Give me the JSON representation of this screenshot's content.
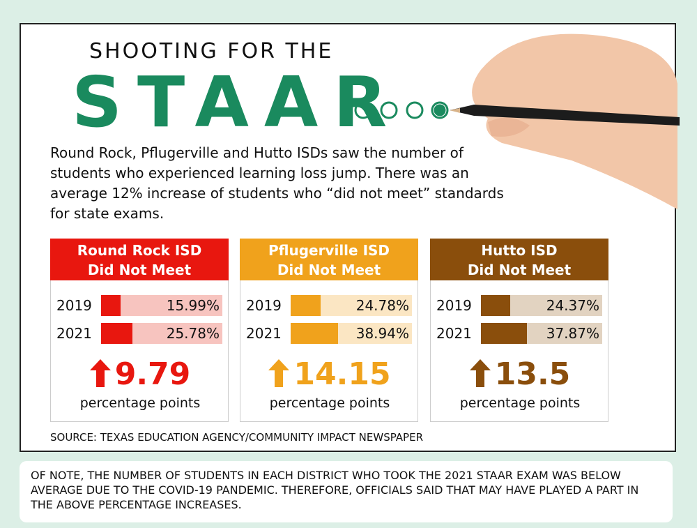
{
  "header": {
    "kicker": "SHOOTING FOR THE",
    "title": "STAAR"
  },
  "description": "Round Rock, Pflugerville and Hutto ISDs saw the number of students who experienced learning loss jump. There was an average 12% increase of students who “did not meet” standards for state exams.",
  "chart_data": [
    {
      "type": "bar",
      "title": "Round Rock ISD",
      "subtitle": "Did Not Meet",
      "categories": [
        "2019",
        "2021"
      ],
      "values": [
        15.99,
        25.78
      ],
      "value_labels": [
        "15.99%",
        "25.78%"
      ],
      "ylim": [
        0,
        100
      ],
      "color": "#e8170f",
      "track_color": "#f7c4bf",
      "change": 9.79,
      "change_unit": "percentage points"
    },
    {
      "type": "bar",
      "title": "Pflugerville ISD",
      "subtitle": "Did Not Meet",
      "categories": [
        "2019",
        "2021"
      ],
      "values": [
        24.78,
        38.94
      ],
      "value_labels": [
        "24.78%",
        "38.94%"
      ],
      "ylim": [
        0,
        100
      ],
      "color": "#f0a21c",
      "track_color": "#fbe6c3",
      "change": 14.15,
      "change_unit": "percentage points"
    },
    {
      "type": "bar",
      "title": "Hutto ISD",
      "subtitle": "Did Not Meet",
      "categories": [
        "2019",
        "2021"
      ],
      "values": [
        24.37,
        37.87
      ],
      "value_labels": [
        "24.37%",
        "37.87%"
      ],
      "ylim": [
        0,
        100
      ],
      "color": "#8a4e0c",
      "track_color": "#e2d3c1",
      "change": 13.5,
      "change_unit": "percentage points"
    }
  ],
  "source": "SOURCE: TEXAS EDUCATION AGENCY/COMMUNITY IMPACT NEWSPAPER",
  "note": "OF NOTE, THE NUMBER OF STUDENTS IN EACH DISTRICT WHO TOOK THE 2021 STAAR EXAM WAS BELOW AVERAGE DUE TO THE COVID-19 PANDEMIC. THEREFORE, OFFICIALS SAID THAT MAY HAVE PLAYED A PART IN THE ABOVE PERCENTAGE INCREASES."
}
